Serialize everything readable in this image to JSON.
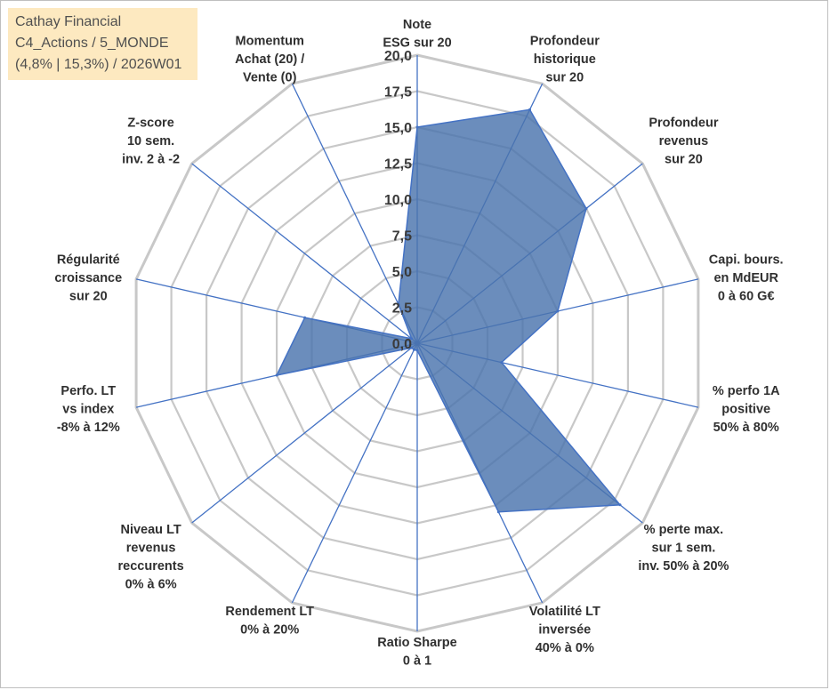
{
  "info": {
    "line1": "Cathay Financial",
    "line2": "C4_Actions / 5_MONDE",
    "line3": "(4,8% | 15,3%) / 2026W01"
  },
  "colors": {
    "fill": "#4a74ad",
    "line": "#4472c4",
    "grid": "#c8c8c8",
    "info_bg": "#fde9c0"
  },
  "chart_data": {
    "type": "radar",
    "title": "Cathay Financial",
    "rmin": 0,
    "rmax": 20,
    "ticks": [
      "0,0",
      "2,5",
      "5,0",
      "7,5",
      "10,0",
      "12,5",
      "15,0",
      "17,5",
      "20,0"
    ],
    "axes": [
      {
        "label": [
          "Note",
          "ESG sur 20"
        ],
        "value": 15
      },
      {
        "label": [
          "Profondeur",
          "historique",
          "sur 20"
        ],
        "value": 18
      },
      {
        "label": [
          "Profondeur",
          "revenus",
          "sur 20"
        ],
        "value": 15
      },
      {
        "label": [
          "Capi. bours.",
          "en MdEUR",
          "0 à 60 G€"
        ],
        "value": 10
      },
      {
        "label": [
          "% perfo 1A",
          "positive",
          "50% à 80%"
        ],
        "value": 6
      },
      {
        "label": [
          "% perte max.",
          "sur 1 sem.",
          "inv. 50% à 20%"
        ],
        "value": 18
      },
      {
        "label": [
          "Volatilité LT",
          "inversée",
          "40% à 0%"
        ],
        "value": 13
      },
      {
        "label": [
          "Ratio Sharpe",
          "0 à 1"
        ],
        "value": 0.5
      },
      {
        "label": [
          "Rendement LT",
          "0% à 20%"
        ],
        "value": 0.5
      },
      {
        "label": [
          "Niveau LT",
          "revenus",
          "reccurents",
          "0% à 6%"
        ],
        "value": 0.5
      },
      {
        "label": [
          "Perfo. LT",
          "vs index",
          "-8% à 12%"
        ],
        "value": 10
      },
      {
        "label": [
          "Régularité",
          "croissance",
          "sur 20"
        ],
        "value": 8
      },
      {
        "label": [
          "Z-score",
          "10 sem.",
          "inv. 2 à -2"
        ],
        "value": 0.5
      },
      {
        "label": [
          "Momentum",
          "Achat (20) /",
          "Vente (0)"
        ],
        "value": 3
      }
    ]
  }
}
